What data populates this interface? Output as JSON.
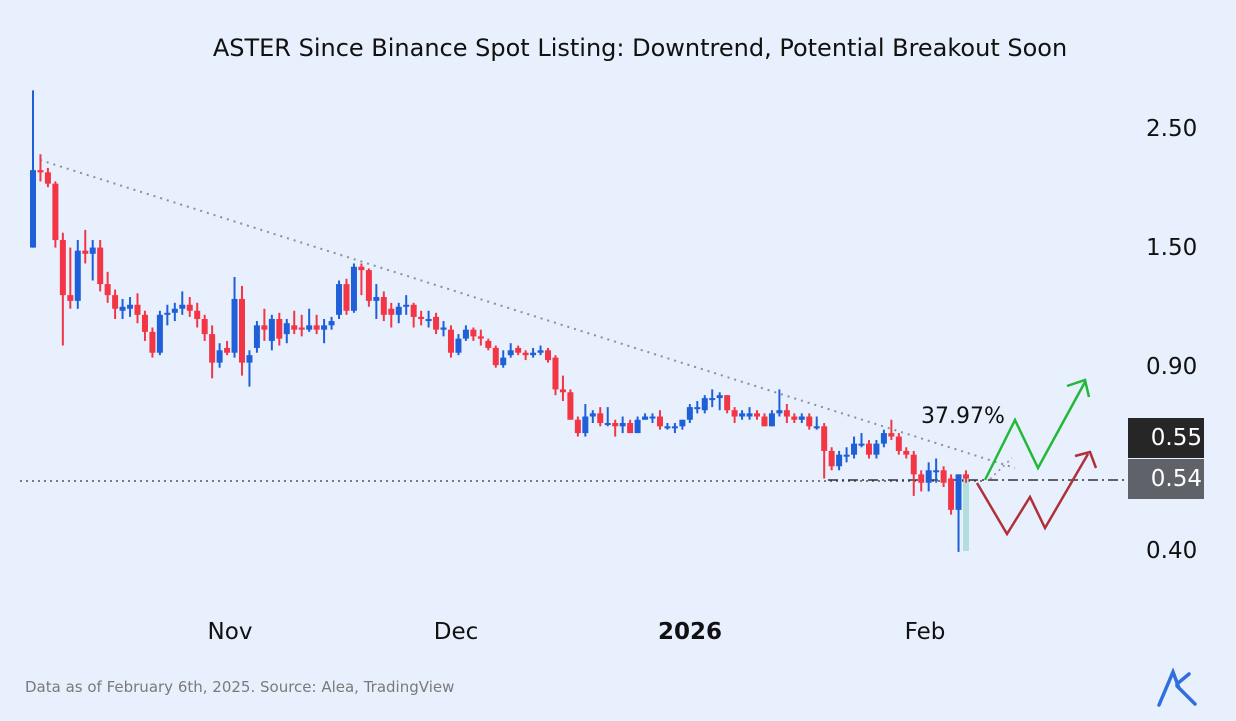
{
  "title": "ASTER Since Binance Spot Listing: Downtrend, Potential Breakout Soon",
  "footer": "Data as of February 6th, 2025. Source: Alea, TradingView",
  "logo_text": "AK",
  "colors": {
    "background": "#e7f0fc",
    "up": "#1f5fd8",
    "down": "#f23645",
    "bull_path": "#22b83a",
    "bear_path": "#b0303a",
    "tag_upper": "#262626",
    "tag_lower": "#5f6269"
  },
  "chart_data": {
    "type": "candlestick",
    "title": "ASTER Since Binance Spot Listing: Downtrend, Potential Breakout Soon",
    "y_scale": "log",
    "y_ticks": [
      "2.50",
      "1.50",
      "0.90",
      "0.40"
    ],
    "x_ticks": [
      "Nov",
      "Dec",
      "2026",
      "Feb"
    ],
    "ylim": [
      0.38,
      3.0
    ],
    "grid": false,
    "annotation": "37.97%",
    "price_tags": {
      "upper": "0.55",
      "lower": "0.54"
    },
    "support_level": 0.54,
    "candles_ohlc": [
      [
        1.5,
        2.97,
        1.5,
        2.1
      ],
      [
        2.1,
        2.25,
        2.0,
        2.08
      ],
      [
        2.08,
        2.12,
        1.95,
        1.98
      ],
      [
        1.98,
        2.0,
        1.5,
        1.55
      ],
      [
        1.55,
        1.6,
        0.98,
        1.22
      ],
      [
        1.22,
        1.5,
        1.15,
        1.19
      ],
      [
        1.19,
        1.55,
        1.15,
        1.48
      ],
      [
        1.48,
        1.62,
        1.4,
        1.46
      ],
      [
        1.46,
        1.55,
        1.3,
        1.5
      ],
      [
        1.5,
        1.55,
        1.24,
        1.28
      ],
      [
        1.28,
        1.35,
        1.18,
        1.22
      ],
      [
        1.22,
        1.25,
        1.1,
        1.15
      ],
      [
        1.14,
        1.2,
        1.1,
        1.16
      ],
      [
        1.15,
        1.21,
        1.11,
        1.17
      ],
      [
        1.17,
        1.23,
        1.08,
        1.12
      ],
      [
        1.12,
        1.14,
        1.0,
        1.04
      ],
      [
        1.04,
        1.06,
        0.93,
        0.95
      ],
      [
        0.95,
        1.14,
        0.94,
        1.12
      ],
      [
        1.12,
        1.17,
        1.07,
        1.13
      ],
      [
        1.13,
        1.18,
        1.09,
        1.15
      ],
      [
        1.15,
        1.24,
        1.12,
        1.17
      ],
      [
        1.17,
        1.21,
        1.11,
        1.14
      ],
      [
        1.14,
        1.18,
        1.06,
        1.1
      ],
      [
        1.1,
        1.12,
        1.0,
        1.03
      ],
      [
        1.03,
        1.07,
        0.85,
        0.91
      ],
      [
        0.91,
        0.99,
        0.89,
        0.96
      ],
      [
        0.97,
        1.0,
        0.94,
        0.95
      ],
      [
        0.95,
        1.32,
        0.93,
        1.2
      ],
      [
        1.2,
        1.27,
        0.86,
        0.91
      ],
      [
        0.91,
        0.96,
        0.82,
        0.94
      ],
      [
        0.97,
        1.09,
        0.95,
        1.07
      ],
      [
        1.07,
        1.15,
        1.0,
        1.05
      ],
      [
        1.0,
        1.12,
        0.96,
        1.1
      ],
      [
        1.1,
        1.13,
        0.98,
        1.01
      ],
      [
        1.03,
        1.1,
        0.99,
        1.08
      ],
      [
        1.07,
        1.14,
        1.03,
        1.05
      ],
      [
        1.06,
        1.12,
        1.02,
        1.05
      ],
      [
        1.05,
        1.15,
        1.04,
        1.07
      ],
      [
        1.07,
        1.12,
        1.03,
        1.05
      ],
      [
        1.05,
        1.1,
        0.99,
        1.07
      ],
      [
        1.07,
        1.11,
        1.05,
        1.09
      ],
      [
        1.12,
        1.3,
        1.1,
        1.28
      ],
      [
        1.28,
        1.31,
        1.12,
        1.14
      ],
      [
        1.14,
        1.4,
        1.13,
        1.38
      ],
      [
        1.38,
        1.4,
        1.22,
        1.36
      ],
      [
        1.36,
        1.37,
        1.16,
        1.19
      ],
      [
        1.19,
        1.28,
        1.1,
        1.21
      ],
      [
        1.21,
        1.24,
        1.09,
        1.12
      ],
      [
        1.15,
        1.18,
        1.06,
        1.12
      ],
      [
        1.12,
        1.18,
        1.08,
        1.16
      ],
      [
        1.16,
        1.22,
        1.12,
        1.17
      ],
      [
        1.17,
        1.18,
        1.06,
        1.11
      ],
      [
        1.11,
        1.14,
        1.07,
        1.1
      ],
      [
        1.09,
        1.14,
        1.06,
        1.1
      ],
      [
        1.11,
        1.13,
        1.03,
        1.05
      ],
      [
        1.05,
        1.09,
        1.02,
        1.06
      ],
      [
        1.05,
        1.07,
        0.93,
        0.95
      ],
      [
        0.95,
        1.03,
        0.94,
        1.01
      ],
      [
        1.01,
        1.07,
        1.0,
        1.05
      ],
      [
        1.05,
        1.06,
        1.0,
        1.02
      ],
      [
        1.02,
        1.05,
        0.98,
        1.01
      ],
      [
        1.0,
        1.01,
        0.96,
        0.97
      ],
      [
        0.97,
        0.98,
        0.89,
        0.9
      ],
      [
        0.9,
        0.96,
        0.89,
        0.93
      ],
      [
        0.94,
        0.99,
        0.93,
        0.96
      ],
      [
        0.97,
        0.98,
        0.94,
        0.95
      ],
      [
        0.95,
        0.96,
        0.92,
        0.94
      ],
      [
        0.94,
        0.97,
        0.93,
        0.95
      ],
      [
        0.95,
        0.98,
        0.94,
        0.96
      ],
      [
        0.96,
        0.97,
        0.91,
        0.92
      ],
      [
        0.93,
        0.94,
        0.79,
        0.81
      ],
      [
        0.81,
        0.86,
        0.77,
        0.8
      ],
      [
        0.8,
        0.81,
        0.71,
        0.71
      ],
      [
        0.71,
        0.72,
        0.66,
        0.67
      ],
      [
        0.67,
        0.76,
        0.66,
        0.72
      ],
      [
        0.72,
        0.74,
        0.7,
        0.73
      ],
      [
        0.73,
        0.75,
        0.69,
        0.7
      ],
      [
        0.7,
        0.75,
        0.69,
        0.7
      ],
      [
        0.7,
        0.71,
        0.66,
        0.69
      ],
      [
        0.69,
        0.72,
        0.67,
        0.7
      ],
      [
        0.7,
        0.71,
        0.67,
        0.67
      ],
      [
        0.67,
        0.72,
        0.67,
        0.71
      ],
      [
        0.71,
        0.73,
        0.71,
        0.72
      ],
      [
        0.72,
        0.73,
        0.7,
        0.72
      ],
      [
        0.72,
        0.74,
        0.68,
        0.69
      ],
      [
        0.69,
        0.7,
        0.68,
        0.69
      ],
      [
        0.69,
        0.7,
        0.67,
        0.69
      ],
      [
        0.69,
        0.71,
        0.68,
        0.71
      ],
      [
        0.71,
        0.76,
        0.7,
        0.75
      ],
      [
        0.75,
        0.77,
        0.73,
        0.75
      ],
      [
        0.74,
        0.79,
        0.73,
        0.78
      ],
      [
        0.78,
        0.81,
        0.75,
        0.78
      ],
      [
        0.78,
        0.8,
        0.74,
        0.79
      ],
      [
        0.79,
        0.79,
        0.73,
        0.74
      ],
      [
        0.74,
        0.75,
        0.7,
        0.72
      ],
      [
        0.72,
        0.74,
        0.71,
        0.73
      ],
      [
        0.72,
        0.75,
        0.71,
        0.73
      ],
      [
        0.73,
        0.74,
        0.71,
        0.72
      ],
      [
        0.72,
        0.73,
        0.69,
        0.69
      ],
      [
        0.69,
        0.74,
        0.69,
        0.73
      ],
      [
        0.73,
        0.81,
        0.72,
        0.74
      ],
      [
        0.74,
        0.76,
        0.7,
        0.72
      ],
      [
        0.72,
        0.73,
        0.7,
        0.71
      ],
      [
        0.71,
        0.73,
        0.7,
        0.72
      ],
      [
        0.72,
        0.73,
        0.68,
        0.69
      ],
      [
        0.69,
        0.72,
        0.68,
        0.69
      ],
      [
        0.69,
        0.7,
        0.55,
        0.62
      ],
      [
        0.62,
        0.63,
        0.57,
        0.58
      ],
      [
        0.58,
        0.62,
        0.57,
        0.61
      ],
      [
        0.61,
        0.63,
        0.59,
        0.61
      ],
      [
        0.61,
        0.66,
        0.6,
        0.64
      ],
      [
        0.64,
        0.67,
        0.63,
        0.64
      ],
      [
        0.64,
        0.65,
        0.6,
        0.61
      ],
      [
        0.61,
        0.65,
        0.6,
        0.64
      ],
      [
        0.64,
        0.68,
        0.63,
        0.67
      ],
      [
        0.67,
        0.71,
        0.65,
        0.66
      ],
      [
        0.66,
        0.67,
        0.61,
        0.62
      ],
      [
        0.62,
        0.63,
        0.6,
        0.61
      ],
      [
        0.61,
        0.62,
        0.51,
        0.56
      ],
      [
        0.56,
        0.57,
        0.52,
        0.54
      ],
      [
        0.54,
        0.59,
        0.52,
        0.57
      ],
      [
        0.57,
        0.6,
        0.54,
        0.57
      ],
      [
        0.57,
        0.58,
        0.53,
        0.54
      ],
      [
        0.55,
        0.56,
        0.47,
        0.48
      ],
      [
        0.48,
        0.56,
        0.4,
        0.56
      ],
      [
        0.56,
        0.57,
        0.54,
        0.55
      ]
    ]
  }
}
